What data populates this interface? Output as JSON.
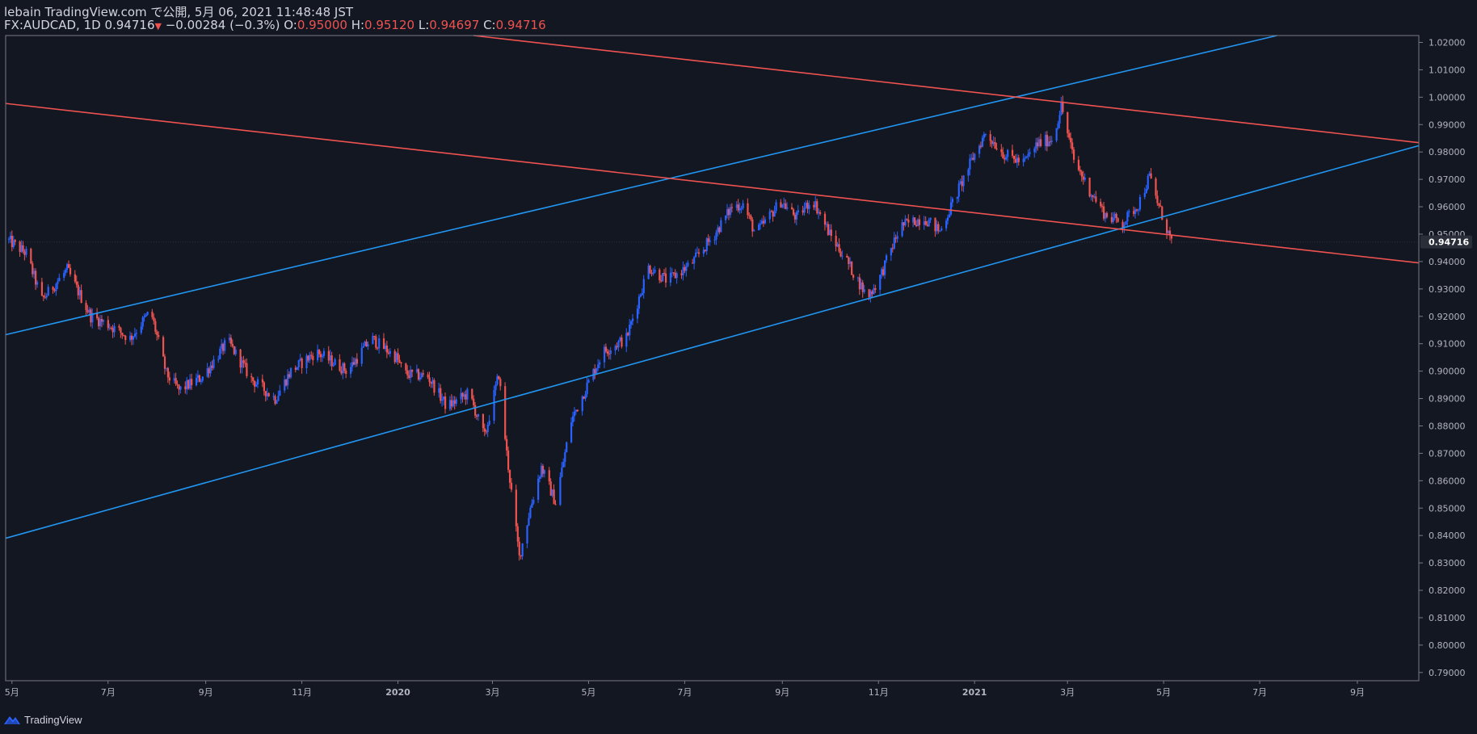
{
  "header": {
    "publish_line": "lebain TradingView.com で公開, 5月 06, 2021 11:48:48 JST",
    "symbol": "FX:AUDCAD, 1D",
    "last": "0.94716",
    "change": "−0.00284 (−0.3%)",
    "o_label": "O:",
    "o_value": "0.95000",
    "h_label": "H:",
    "h_value": "0.95120",
    "l_label": "L:",
    "l_value": "0.94697",
    "c_label": "C:",
    "c_value": "0.94716"
  },
  "branding": {
    "name": "TradingView",
    "icon": "tradingview-logo-icon"
  },
  "colors": {
    "background": "#131722",
    "up": "#2962ff",
    "down": "#ef5350",
    "trend_blue": "#2196f3",
    "trend_red": "#ef5350",
    "axis_text": "#b2b5be",
    "border": "#787b86"
  },
  "chart_data": {
    "type": "candlestick",
    "symbol": "FX:AUDCAD",
    "interval": "1D",
    "y_range": [
      0.787,
      1.0225
    ],
    "y_ticks": [
      "1.02000",
      "1.01000",
      "1.00000",
      "0.99000",
      "0.98000",
      "0.97000",
      "0.96000",
      "0.95000",
      "0.94000",
      "0.93000",
      "0.92000",
      "0.91000",
      "0.90000",
      "0.89000",
      "0.88000",
      "0.87000",
      "0.86000",
      "0.85000",
      "0.84000",
      "0.83000",
      "0.82000",
      "0.81000",
      "0.80000",
      "0.79000"
    ],
    "last_price_label": "0.94716",
    "x_range": [
      "2019-04-27",
      "2021-10-10"
    ],
    "x_ticks": [
      {
        "date": "2019-05-01",
        "label": "5月"
      },
      {
        "date": "2019-07-01",
        "label": "7月"
      },
      {
        "date": "2019-09-01",
        "label": "9月"
      },
      {
        "date": "2019-11-01",
        "label": "11月"
      },
      {
        "date": "2020-01-01",
        "label": "2020"
      },
      {
        "date": "2020-03-01",
        "label": "3月"
      },
      {
        "date": "2020-05-01",
        "label": "5月"
      },
      {
        "date": "2020-07-01",
        "label": "7月"
      },
      {
        "date": "2020-09-01",
        "label": "9月"
      },
      {
        "date": "2020-11-01",
        "label": "11月"
      },
      {
        "date": "2021-01-01",
        "label": "2021"
      },
      {
        "date": "2021-03-01",
        "label": "3月"
      },
      {
        "date": "2021-05-01",
        "label": "5月"
      },
      {
        "date": "2021-07-01",
        "label": "7月"
      },
      {
        "date": "2021-09-01",
        "label": "9月"
      }
    ],
    "price_path": [
      [
        "2019-04-28",
        0.948
      ],
      [
        "2019-05-10",
        0.943
      ],
      [
        "2019-05-20",
        0.926
      ],
      [
        "2019-06-05",
        0.937
      ],
      [
        "2019-06-20",
        0.92
      ],
      [
        "2019-07-01",
        0.917
      ],
      [
        "2019-07-15",
        0.912
      ],
      [
        "2019-07-28",
        0.922
      ],
      [
        "2019-08-07",
        0.899
      ],
      [
        "2019-08-15",
        0.893
      ],
      [
        "2019-08-30",
        0.898
      ],
      [
        "2019-09-15",
        0.911
      ],
      [
        "2019-09-30",
        0.897
      ],
      [
        "2019-10-15",
        0.89
      ],
      [
        "2019-10-25",
        0.9
      ],
      [
        "2019-11-10",
        0.907
      ],
      [
        "2019-11-30",
        0.9
      ],
      [
        "2019-12-15",
        0.912
      ],
      [
        "2019-12-31",
        0.905
      ],
      [
        "2020-01-05",
        0.899
      ],
      [
        "2020-01-20",
        0.898
      ],
      [
        "2020-02-01",
        0.887
      ],
      [
        "2020-02-15",
        0.892
      ],
      [
        "2020-02-25",
        0.876
      ],
      [
        "2020-03-05",
        0.899
      ],
      [
        "2020-03-10",
        0.87
      ],
      [
        "2020-03-18",
        0.832
      ],
      [
        "2020-03-25",
        0.85
      ],
      [
        "2020-04-01",
        0.865
      ],
      [
        "2020-04-10",
        0.852
      ],
      [
        "2020-04-20",
        0.882
      ],
      [
        "2020-05-01",
        0.896
      ],
      [
        "2020-05-10",
        0.907
      ],
      [
        "2020-05-25",
        0.912
      ],
      [
        "2020-06-08",
        0.938
      ],
      [
        "2020-06-20",
        0.933
      ],
      [
        "2020-07-05",
        0.939
      ],
      [
        "2020-07-20",
        0.95
      ],
      [
        "2020-07-31",
        0.96
      ],
      [
        "2020-08-07",
        0.961
      ],
      [
        "2020-08-15",
        0.95
      ],
      [
        "2020-08-31",
        0.962
      ],
      [
        "2020-09-10",
        0.956
      ],
      [
        "2020-09-20",
        0.963
      ],
      [
        "2020-10-01",
        0.95
      ],
      [
        "2020-10-10",
        0.942
      ],
      [
        "2020-10-25",
        0.927
      ],
      [
        "2020-11-01",
        0.933
      ],
      [
        "2020-11-15",
        0.953
      ],
      [
        "2020-11-30",
        0.956
      ],
      [
        "2020-12-10",
        0.951
      ],
      [
        "2020-12-20",
        0.964
      ],
      [
        "2020-12-31",
        0.978
      ],
      [
        "2021-01-08",
        0.987
      ],
      [
        "2021-01-20",
        0.979
      ],
      [
        "2021-02-01",
        0.976
      ],
      [
        "2021-02-10",
        0.983
      ],
      [
        "2021-02-20",
        0.985
      ],
      [
        "2021-02-25",
        0.997
      ],
      [
        "2021-03-05",
        0.977
      ],
      [
        "2021-03-15",
        0.966
      ],
      [
        "2021-03-25",
        0.957
      ],
      [
        "2021-04-05",
        0.954
      ],
      [
        "2021-04-15",
        0.961
      ],
      [
        "2021-04-22",
        0.971
      ],
      [
        "2021-04-28",
        0.96
      ],
      [
        "2021-05-06",
        0.9472
      ]
    ],
    "trendlines": [
      {
        "color": "blue",
        "p1": [
          "2019-04-27",
          0.9133
        ],
        "p2": [
          "2021-07-12",
          1.0225
        ]
      },
      {
        "color": "blue",
        "p1": [
          "2019-04-27",
          0.839
        ],
        "p2": [
          "2021-10-10",
          0.9823
        ]
      },
      {
        "color": "red",
        "p1": [
          "2020-02-18",
          1.0225
        ],
        "p2": [
          "2021-10-10",
          0.9834
        ]
      },
      {
        "color": "red",
        "p1": [
          "2019-04-27",
          0.9977
        ],
        "p2": [
          "2021-10-10",
          0.9395
        ]
      }
    ]
  }
}
